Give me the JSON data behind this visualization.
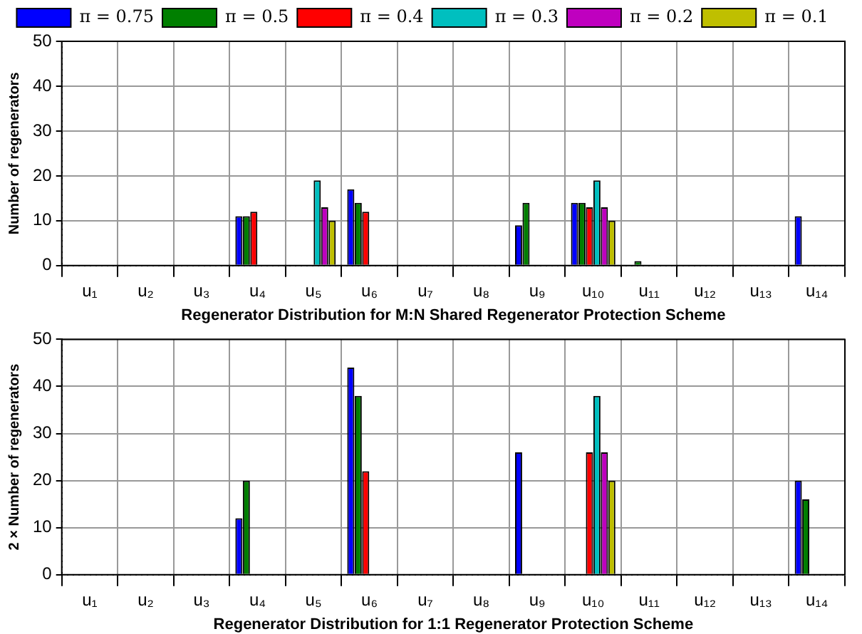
{
  "chart_data": [
    {
      "type": "bar",
      "xlabel": "Regenerator Distribution for M:N Shared Regenerator Protection Scheme",
      "ylabel": "Number of regenerators",
      "categories": [
        "u₁",
        "u₂",
        "u₃",
        "u₄",
        "u₅",
        "u₆",
        "u₇",
        "u₈",
        "u₉",
        "u₁₀",
        "u₁₁",
        "u₁₂",
        "u₁₃",
        "u₁₄"
      ],
      "ylim": [
        0,
        50
      ],
      "yticks": [
        0,
        10,
        20,
        30,
        40,
        50
      ],
      "grid": true,
      "legend": "top",
      "series": [
        {
          "name": "π = 0.75",
          "color": "#0000ff",
          "values": [
            0,
            0,
            0,
            11,
            0,
            17,
            0,
            0,
            9,
            14,
            0,
            0,
            0,
            11
          ]
        },
        {
          "name": "π = 0.5",
          "color": "#007f00",
          "values": [
            0,
            0,
            0,
            11,
            0,
            14,
            0,
            0,
            14,
            14,
            1,
            0,
            0,
            0
          ]
        },
        {
          "name": "π = 0.4",
          "color": "#ff0000",
          "values": [
            0,
            0,
            0,
            12,
            0,
            12,
            0,
            0,
            0,
            13,
            0,
            0,
            0,
            0
          ]
        },
        {
          "name": "π = 0.3",
          "color": "#00bfbf",
          "values": [
            0,
            0,
            0,
            0,
            19,
            0,
            0,
            0,
            0,
            19,
            0,
            0,
            0,
            0
          ]
        },
        {
          "name": "π = 0.2",
          "color": "#bf00bf",
          "values": [
            0,
            0,
            0,
            0,
            13,
            0,
            0,
            0,
            0,
            13,
            0,
            0,
            0,
            0
          ]
        },
        {
          "name": "π = 0.1",
          "color": "#bfbf00",
          "values": [
            0,
            0,
            0,
            0,
            10,
            0,
            0,
            0,
            0,
            10,
            0,
            0,
            0,
            0
          ]
        }
      ]
    },
    {
      "type": "bar",
      "xlabel": "Regenerator Distribution for 1:1 Regenerator Protection Scheme",
      "ylabel": "2 × Number of regenerators",
      "categories": [
        "u₁",
        "u₂",
        "u₃",
        "u₄",
        "u₅",
        "u₆",
        "u₇",
        "u₈",
        "u₉",
        "u₁₀",
        "u₁₁",
        "u₁₂",
        "u₁₃",
        "u₁₄"
      ],
      "ylim": [
        0,
        50
      ],
      "yticks": [
        0,
        10,
        20,
        30,
        40,
        50
      ],
      "grid": true,
      "series": [
        {
          "color": "#0000ff",
          "values": [
            0,
            0,
            0,
            12,
            0,
            44,
            0,
            0,
            26,
            0,
            0,
            0,
            0,
            20
          ]
        },
        {
          "color": "#007f00",
          "values": [
            0,
            0,
            0,
            20,
            0,
            38,
            0,
            0,
            0,
            0,
            0,
            0,
            0,
            16
          ]
        },
        {
          "color": "#ff0000",
          "values": [
            0,
            0,
            0,
            0,
            0,
            22,
            0,
            0,
            0,
            26,
            0,
            0,
            0,
            0
          ]
        },
        {
          "color": "#00bfbf",
          "values": [
            0,
            0,
            0,
            0,
            0,
            0,
            0,
            0,
            0,
            38,
            0,
            0,
            0,
            0
          ]
        },
        {
          "color": "#bf00bf",
          "values": [
            0,
            0,
            0,
            0,
            0,
            0,
            0,
            0,
            0,
            26,
            0,
            0,
            0,
            0
          ]
        },
        {
          "color": "#bfbf00",
          "values": [
            0,
            0,
            0,
            0,
            0,
            0,
            0,
            0,
            0,
            20,
            0,
            0,
            0,
            0
          ]
        }
      ]
    }
  ]
}
